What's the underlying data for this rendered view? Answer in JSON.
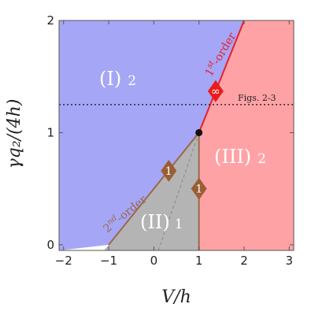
{
  "chart_data": {
    "type": "area",
    "xlabel": "V/h",
    "ylabel": "γq₂/(4h)",
    "xlim": [
      -2.1,
      3.1
    ],
    "ylim": [
      -0.05,
      2.0
    ],
    "xticks": [
      -2,
      -1,
      0,
      1,
      2,
      3
    ],
    "yticks": [
      0,
      1,
      2
    ],
    "xtick_labels": [
      "−2",
      "−1",
      "0",
      "1",
      "2",
      "3"
    ],
    "ytick_labels": [
      "0",
      "1",
      "2"
    ],
    "colors": {
      "region_I": "#a6a6f6",
      "region_II": "#b4b4b4",
      "region_III": "#ffa2a6",
      "first_order": "#e81f2a",
      "second_order": "#9a6a4a",
      "marker_brown": "#9a5e35",
      "marker_red": "#e81c1c"
    },
    "regions": [
      {
        "label": "(I)",
        "sub": "2",
        "polygon": [
          [
            -2.1,
            -0.05
          ],
          [
            -1,
            0
          ],
          [
            1,
            1
          ],
          [
            2,
            2
          ],
          [
            -2.1,
            2
          ]
        ]
      },
      {
        "label": "(II)",
        "sub": "1",
        "polygon": [
          [
            -1,
            0
          ],
          [
            1,
            1
          ],
          [
            1,
            -0.05
          ],
          [
            -1.1,
            -0.05
          ]
        ]
      },
      {
        "label": "(III)",
        "sub": "2",
        "polygon": [
          [
            1,
            -0.05
          ],
          [
            1,
            1
          ],
          [
            2,
            2
          ],
          [
            3.1,
            2
          ],
          [
            3.1,
            -0.05
          ]
        ]
      }
    ],
    "lines": [
      {
        "name": "first_order",
        "label": "1st-order",
        "points": [
          [
            1,
            1
          ],
          [
            2,
            2
          ]
        ]
      },
      {
        "name": "second_order",
        "label": "2nd-order",
        "points": [
          [
            -1,
            0
          ],
          [
            1,
            1
          ]
        ]
      },
      {
        "name": "boundary_II_III",
        "points": [
          [
            1,
            -0.05
          ],
          [
            1,
            1
          ]
        ]
      },
      {
        "name": "dashed_inner",
        "points": [
          [
            0.1,
            -0.05
          ],
          [
            1,
            1
          ]
        ]
      }
    ],
    "reference_line": {
      "y": 1.25,
      "label": "Figs. 2-3"
    },
    "critical_point": [
      1,
      1
    ],
    "markers": [
      {
        "text": "1",
        "x": 0.33,
        "y": 0.66,
        "color": "brown"
      },
      {
        "text": "1",
        "x": 1.0,
        "y": 0.5,
        "color": "brown"
      },
      {
        "text": "∞",
        "x": 1.37,
        "y": 1.37,
        "color": "red"
      }
    ],
    "labels": {
      "region_I": "(I)",
      "region_I_sub": "2",
      "region_II": "(II)",
      "region_II_sub": "1",
      "region_III": "(III)",
      "region_III_sub": "2",
      "first_order_num": "1",
      "first_order_sup": "st",
      "first_order_rest": "-order",
      "second_order_num": "2",
      "second_order_sup": "nd",
      "second_order_rest": "-order",
      "ref": "Figs. 2-3"
    }
  }
}
